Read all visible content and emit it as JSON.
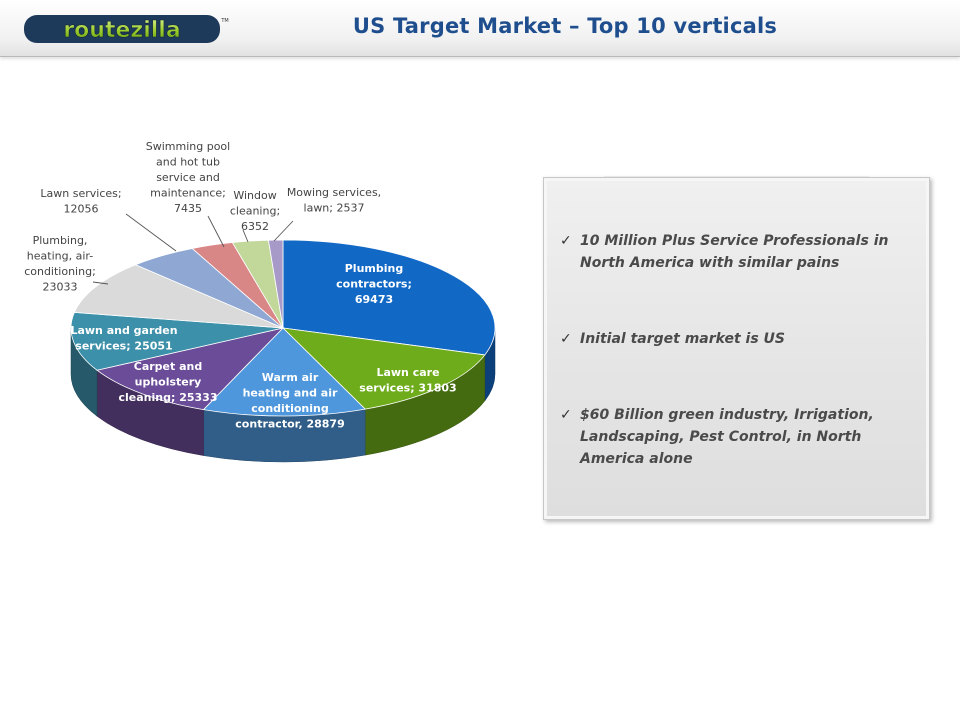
{
  "header": {
    "logo_text": "routezilla",
    "logo_tm": "TM",
    "title": "US Target Market – Top 10 verticals"
  },
  "chart_data": {
    "type": "pie",
    "style": "3d",
    "start": "top",
    "direction": "clockwise",
    "slices": [
      {
        "label": "Plumbing contractors",
        "value": 69473,
        "color": "#1268c5",
        "label_lines": [
          "Plumbing",
          "contractors;",
          "69473"
        ]
      },
      {
        "label": "Lawn care services",
        "value": 31803,
        "color": "#6fac1c",
        "label_lines": [
          "Lawn care",
          "services; 31803"
        ]
      },
      {
        "label": "Warm air heating and air conditioning contractor",
        "value": 28879,
        "color": "#4f97dc",
        "label_lines": [
          "Warm air",
          "heating and air",
          "conditioning",
          "contractor, 28879"
        ]
      },
      {
        "label": "Carpet and upholstery cleaning",
        "value": 25333,
        "color": "#6a4c98",
        "label_lines": [
          "Carpet and",
          "upholstery",
          "cleaning; 25333"
        ]
      },
      {
        "label": "Lawn and garden services",
        "value": 25051,
        "color": "#3d90a9",
        "label_lines": [
          "Lawn and garden",
          "services; 25051"
        ]
      },
      {
        "label": "Plumbing, heating, air-conditioning",
        "value": 23033,
        "color": "#dadada",
        "label_lines": [
          "Plumbing,",
          "heating, air-",
          "conditioning;",
          "23033"
        ]
      },
      {
        "label": "Lawn services",
        "value": 12056,
        "color": "#8ea8d3",
        "label_lines": [
          "Lawn services;",
          "12056"
        ]
      },
      {
        "label": "Swimming pool and hot tub service and maintenance",
        "value": 7435,
        "color": "#d98686",
        "label_lines": [
          "Swimming pool",
          "and hot tub",
          "service and",
          "maintenance;",
          "7435"
        ]
      },
      {
        "label": "Window cleaning",
        "value": 6352,
        "color": "#c2d89a",
        "label_lines": [
          "Window",
          "cleaning;",
          "6352"
        ]
      },
      {
        "label": "Mowing services, lawn",
        "value": 2537,
        "color": "#a89ac8",
        "label_lines": [
          "Mowing services,",
          "lawn; 2537"
        ]
      }
    ]
  },
  "panel": {
    "bullets": [
      {
        "text": "10 Million Plus Service Professionals in North America with similar pains"
      },
      {
        "text": "Initial target market is US"
      },
      {
        "text": "$60 Billion green industry, Irrigation, Landscaping, Pest Control,  in North America alone"
      }
    ]
  },
  "icons": {
    "bullet": "checkmark-icon"
  }
}
